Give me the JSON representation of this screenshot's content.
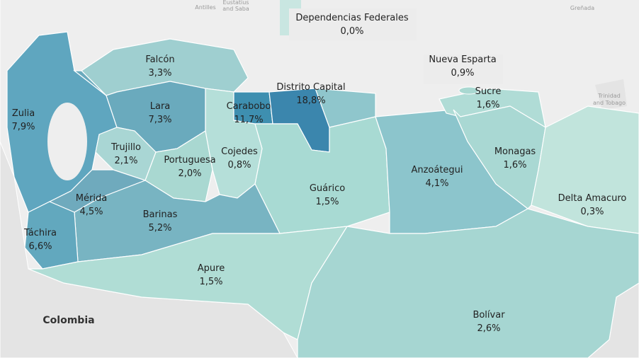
{
  "states": [
    {
      "name": "Dependencias Federales",
      "share": "0,0%"
    },
    {
      "name": "Falcón",
      "share": "3,3%"
    },
    {
      "name": "Nueva Esparta",
      "share": "0,9%"
    },
    {
      "name": "Distrito Capital",
      "share": "18,8%"
    },
    {
      "name": "Sucre",
      "share": "1,6%"
    },
    {
      "name": "Zulia",
      "share": "7,9%"
    },
    {
      "name": "Lara",
      "share": "7,3%"
    },
    {
      "name": "Carabobo",
      "share": "11,7%"
    },
    {
      "name": "Trujillo",
      "share": "2,1%"
    },
    {
      "name": "Cojedes",
      "share": "0,8%"
    },
    {
      "name": "Portuguesa",
      "share": "2,0%"
    },
    {
      "name": "Monagas",
      "share": "1,6%"
    },
    {
      "name": "Anzoátegui",
      "share": "4,1%"
    },
    {
      "name": "Guárico",
      "share": "1,5%"
    },
    {
      "name": "Mérida",
      "share": "4,5%"
    },
    {
      "name": "Delta Amacuro",
      "share": "0,3%"
    },
    {
      "name": "Barinas",
      "share": "5,2%"
    },
    {
      "name": "Táchira",
      "share": "6,6%"
    },
    {
      "name": "Apure",
      "share": "1,5%"
    },
    {
      "name": "Bolívar",
      "share": "2,6%"
    }
  ],
  "background_labels": {
    "antilles": "Antilles",
    "eustatius": "Eustatius",
    "saba": "and Saba",
    "grenada": "Greñada",
    "trinidad": "Trinidad",
    "tobago": "and Tobago",
    "colombia": "Colombia"
  }
}
